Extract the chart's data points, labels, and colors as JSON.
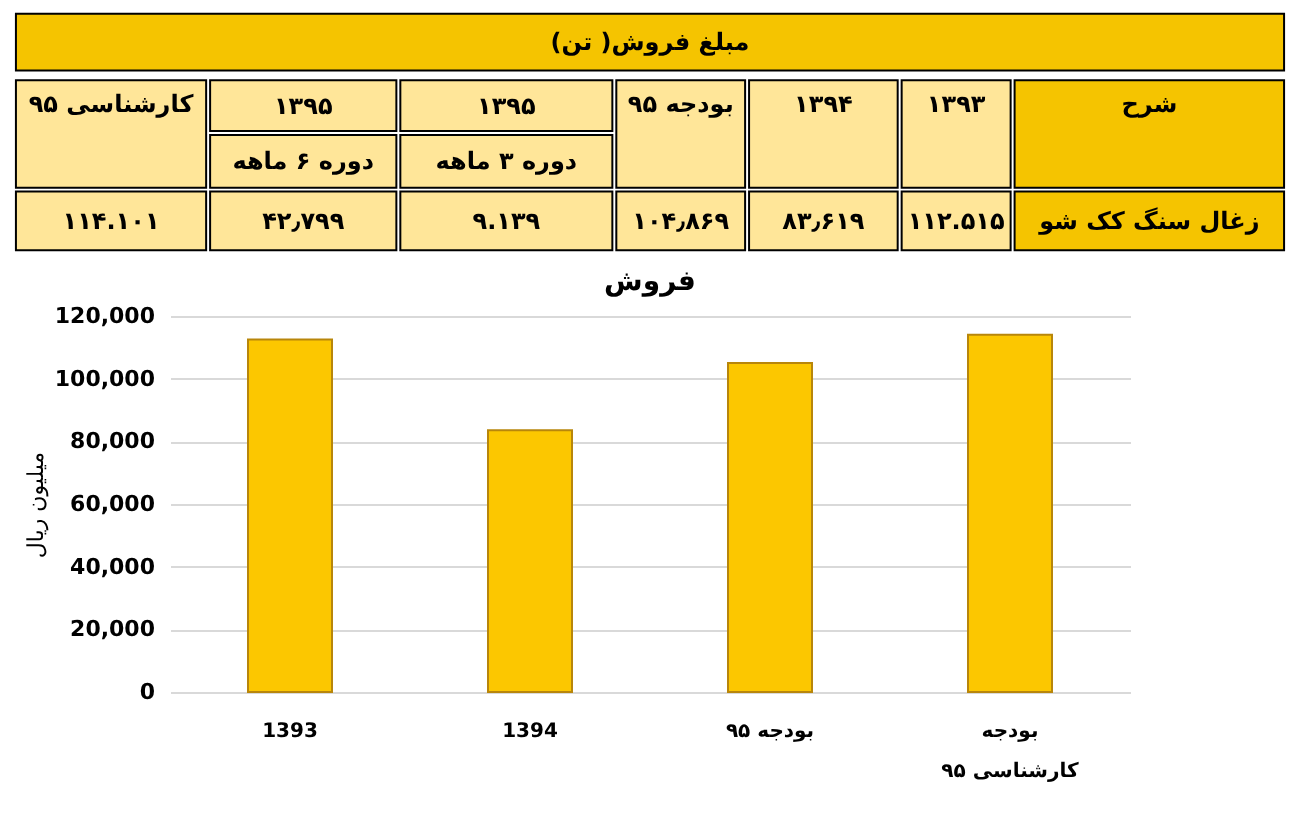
{
  "chart_data": [
    {
      "type": "other",
      "title": "مبلغ فروش( تن)",
      "annotations": [
        "شرح",
        "۱۳۹۳",
        "۱۳۹۴",
        "بودجه ۹۵",
        "۱۳۹۵",
        "دوره ۳ ماهه",
        "۱۳۹۵",
        "دوره ۶ ماهه",
        "کارشناسی ۹۵",
        "زغال سنگ کک شو",
        "۱۱۲.۵۱۵",
        "۸۳٫۶۱۹",
        "۱۰۴٫۸۶۹",
        "۹.۱۳۹",
        "۴۲٫۷۹۹",
        "۱۱۴.۱۰۱"
      ],
      "colors": [
        "#f5c400",
        "#f5c400",
        "#ffe699",
        "#ffe699",
        "#ffe699",
        "#ffe699",
        "#ffe699",
        "#ffe699",
        "#ffe699",
        "#ffe699",
        "#f5c400",
        "#ffe699",
        "#ffe699",
        "#ffe699",
        "#ffe699",
        "#ffe699",
        "#ffe699"
      ]
    },
    {
      "type": "bar",
      "title": "فروش",
      "ylabel": "میلیون ریال",
      "categories": [
        "1393",
        "1394",
        "بودجه ۹۵",
        "بودجه\nکارشناسی ۹۵"
      ],
      "values": [
        112500,
        83500,
        105000,
        114000
      ],
      "color": "#fcc700",
      "ylim": [
        0,
        120000
      ],
      "yticks": [
        0,
        {
          "value": 20000,
          "label": "20,000"
        },
        {
          "value": 40000,
          "label": "40,000"
        },
        {
          "value": 60000,
          "label": "60,000"
        },
        {
          "value": 80000,
          "label": "80,000"
        },
        {
          "value": 100000,
          "label": "100,000"
        },
        {
          "value": 120000,
          "label": "120,000"
        }
      ],
      "grid": "y",
      "legend": false
    }
  ]
}
